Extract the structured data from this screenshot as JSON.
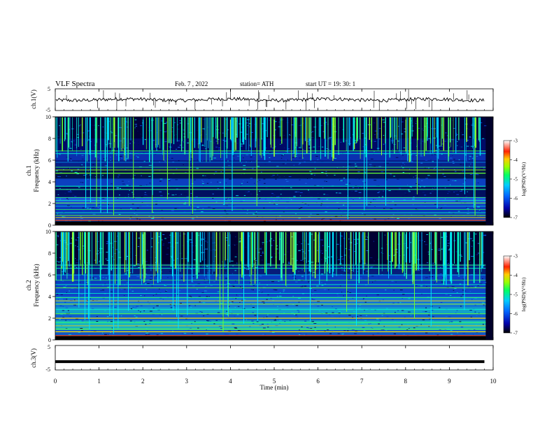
{
  "header": {
    "title": "VLF  Spectra",
    "date": "Feb. 7  , 2022",
    "station": "station= ATH",
    "start_time": "start  UT  =   19: 30: 1"
  },
  "chart_data": [
    {
      "type": "line",
      "name": "ch1-waveform",
      "ylabel": "ch.1(V)",
      "ylim": [
        -5,
        5
      ],
      "y_ticks": [
        "5",
        "-5"
      ],
      "xlim": [
        0,
        10
      ],
      "baseline": 0,
      "duration_min": 9.8,
      "color": "#000000"
    },
    {
      "type": "heatmap",
      "name": "ch1-spectrogram",
      "ylabel_top": "ch.1",
      "ylabel": "Frequency  (kHz)",
      "ylim": [
        0,
        10
      ],
      "y_ticks": [
        "0",
        "2",
        "4",
        "6",
        "8",
        "10"
      ],
      "xlim": [
        0,
        10
      ],
      "colorbar": {
        "label": "log(PSD)(V²/Hz)",
        "range": [
          -7,
          -3
        ],
        "ticks": [
          "-3",
          "-4",
          "-5",
          "-6",
          "-7"
        ]
      }
    },
    {
      "type": "heatmap",
      "name": "ch2-spectrogram",
      "ylabel_top": "ch.2",
      "ylabel": "Frequency  (kHz)",
      "ylim": [
        0,
        10
      ],
      "y_ticks": [
        "0",
        "2",
        "4",
        "6",
        "8",
        "10"
      ],
      "xlim": [
        0,
        10
      ],
      "colorbar": {
        "label": "log(PSD)(V²/Hz)",
        "range": [
          -7,
          -3
        ],
        "ticks": [
          "-3",
          "-4",
          "-5",
          "-6",
          "-7"
        ]
      }
    },
    {
      "type": "line",
      "name": "ch3-waveform",
      "ylabel": "ch.3(V)",
      "ylim": [
        -5,
        5
      ],
      "y_ticks": [
        "5",
        "-5"
      ],
      "xlim": [
        0,
        10
      ],
      "baseline": -1.6,
      "duration_min": 9.8,
      "color": "#000000"
    }
  ],
  "x_axis": {
    "label": "Time  (min)",
    "ticks": [
      "0",
      "1",
      "2",
      "3",
      "4",
      "5",
      "6",
      "7",
      "8",
      "9",
      "10"
    ]
  },
  "colors": {
    "low": "#000033",
    "mid_low": "#0033cc",
    "mid": "#00cc99",
    "high": "#66ff33",
    "peak": "#ff3300"
  }
}
